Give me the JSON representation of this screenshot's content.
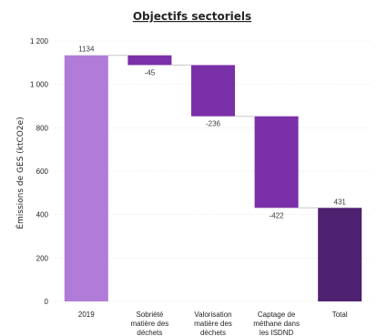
{
  "chart_data": {
    "type": "waterfall",
    "title": "Objectifs sectoriels",
    "ylabel": "Émissions de GES (ktCO2e)",
    "xlabel": "",
    "ylim": [
      0,
      1200
    ],
    "yticks": [
      0,
      200,
      400,
      600,
      800,
      1000,
      1200
    ],
    "ytick_labels": [
      "0",
      "200",
      "400",
      "600",
      "800",
      "1 000",
      "1 200"
    ],
    "grid": true,
    "legend": "none",
    "categories": [
      [
        "2019"
      ],
      [
        "Sobriété",
        "matière des",
        "déchets"
      ],
      [
        "Valorisation",
        "matière des",
        "déchets"
      ],
      [
        "Captage de",
        "méthane dans",
        "les ISDND"
      ],
      [
        "Total"
      ]
    ],
    "steps": [
      {
        "kind": "total",
        "value": 1134,
        "label": "1134"
      },
      {
        "kind": "delta",
        "value": -45,
        "label": "-45"
      },
      {
        "kind": "delta",
        "value": -236,
        "label": "-236"
      },
      {
        "kind": "delta",
        "value": -422,
        "label": "-422"
      },
      {
        "kind": "total",
        "value": 431,
        "label": "431"
      }
    ],
    "colors": {
      "start": "#b17bd8",
      "decrease": "#7a30a8",
      "total": "#4e2170"
    }
  }
}
